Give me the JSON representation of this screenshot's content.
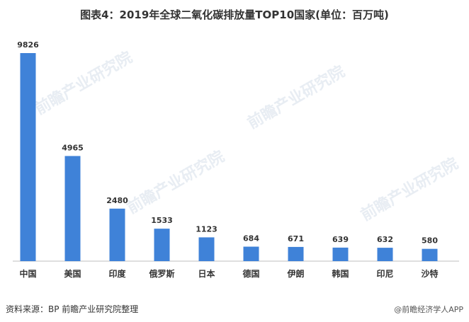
{
  "chart_data": {
    "type": "bar",
    "title": "图表4：2019年全球二氧化碳排放量TOP10国家(单位：百万吨)",
    "categories": [
      "中国",
      "美国",
      "印度",
      "俄罗斯",
      "日本",
      "德国",
      "伊朗",
      "韩国",
      "印尼",
      "沙特"
    ],
    "values": [
      9826,
      4965,
      2480,
      1533,
      1123,
      684,
      671,
      639,
      632,
      580
    ],
    "ylim": [
      0,
      9826
    ],
    "bar_color": "#3f82d8",
    "grid": false,
    "legend": "none"
  },
  "source": "资料来源：BP 前瞻产业研究院整理",
  "watermark": "前瞻产业研究院",
  "credit": "@前瞻经济学人APP"
}
